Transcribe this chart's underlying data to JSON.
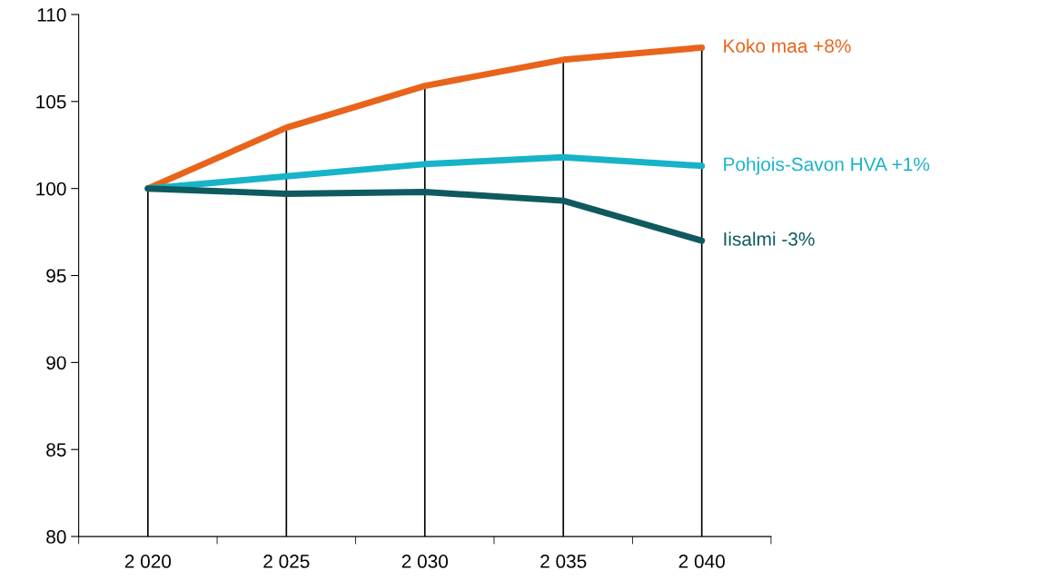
{
  "chart_data": {
    "type": "line",
    "categories": [
      "2 020",
      "2 025",
      "2 030",
      "2 035",
      "2 040"
    ],
    "series": [
      {
        "name": "Koko maa +8%",
        "color": "#e8641b",
        "values": [
          100,
          103.5,
          105.9,
          107.4,
          108.1
        ]
      },
      {
        "name": "Pohjois-Savon HVA +1%",
        "color": "#17b3c8",
        "values": [
          100,
          100.7,
          101.4,
          101.8,
          101.3
        ]
      },
      {
        "name": "Iisalmi -3%",
        "color": "#0f5a5f",
        "values": [
          100,
          99.7,
          99.8,
          99.3,
          97.0
        ]
      }
    ],
    "ylim": [
      80,
      110
    ],
    "yticks": [
      80,
      85,
      90,
      95,
      100,
      105,
      110
    ],
    "ref_lines": [
      {
        "axis": "x",
        "value": "2 020",
        "color": "#000000"
      },
      {
        "axis": "x",
        "value": "2 025",
        "color": "#000000"
      },
      {
        "axis": "x",
        "value": "2 030",
        "color": "#000000"
      },
      {
        "axis": "x",
        "value": "2 035",
        "color": "#000000"
      },
      {
        "axis": "x",
        "value": "2 040",
        "color": "#000000"
      }
    ],
    "grid": false,
    "legend": false,
    "marker": "none",
    "line_style": "solid"
  }
}
